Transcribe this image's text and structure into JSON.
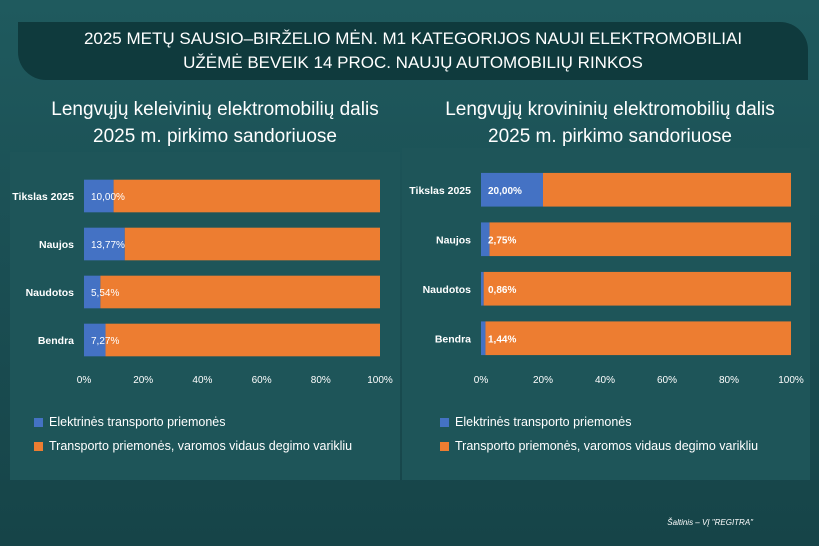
{
  "banner": {
    "line1": "2025 METŲ SAUSIO–BIRŽELIO MĖN. M1 KATEGORIJOS NAUJI ELEKTROMOBILIAI",
    "line2": "UŽĖMĖ BEVEIK 14 PROC. NAUJŲ AUTOMOBILIŲ RINKOS"
  },
  "colors": {
    "electric": "#4472c4",
    "combustion": "#ed7d31"
  },
  "source": "Šaltinis – VĮ \"REGITRA\"",
  "chart_data": [
    {
      "type": "bar",
      "orientation": "horizontal",
      "stacked": "100%",
      "title_line1": "Lengvųjų keleivinių elektromobilių dalis",
      "title_line2": "2025 m. pirkimo sandoriuose",
      "categories": [
        "Tikslas 2025",
        "Naujos",
        "Naudotos",
        "Bendra"
      ],
      "series": [
        {
          "name": "Elektrinės transporto priemonės",
          "values": [
            10.0,
            13.77,
            5.54,
            7.27
          ],
          "labels": [
            "10,00%",
            "13,77%",
            "5,54%",
            "7,27%"
          ]
        },
        {
          "name": "Transporto priemonės, varomos vidaus degimo varikliu",
          "values": [
            90.0,
            86.23,
            94.46,
            92.73
          ]
        }
      ],
      "xlim": [
        0,
        100
      ],
      "xticks": [
        "0%",
        "20%",
        "40%",
        "60%",
        "80%",
        "100%"
      ],
      "legend": "bottom"
    },
    {
      "type": "bar",
      "orientation": "horizontal",
      "stacked": "100%",
      "title_line1": "Lengvųjų krovininių elektromobilių dalis",
      "title_line2": "2025 m. pirkimo sandoriuose",
      "categories": [
        "Tikslas 2025",
        "Naujos",
        "Naudotos",
        "Bendra"
      ],
      "series": [
        {
          "name": "Elektrinės transporto priemonės",
          "values": [
            20.0,
            2.75,
            0.86,
            1.44
          ],
          "labels": [
            "20,00%",
            "2,75%",
            "0,86%",
            "1,44%"
          ]
        },
        {
          "name": "Transporto priemonės, varomos vidaus degimo varikliu",
          "values": [
            80.0,
            97.25,
            99.14,
            98.56
          ]
        }
      ],
      "xlim": [
        0,
        100
      ],
      "xticks": [
        "0%",
        "20%",
        "40%",
        "60%",
        "80%",
        "100%"
      ],
      "legend": "bottom"
    }
  ]
}
